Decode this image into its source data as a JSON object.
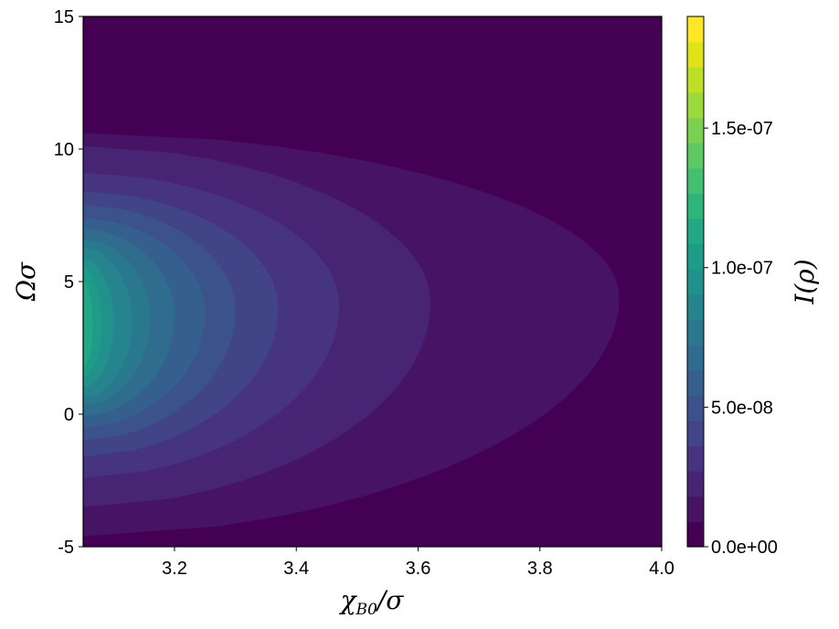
{
  "chart_data": {
    "type": "contour",
    "xlabel": "χB0/σ",
    "ylabel": "Ωσ",
    "colorbar_label": "I(ρ)",
    "xlim": [
      3.05,
      4.0
    ],
    "ylim": [
      -5,
      15
    ],
    "x_ticks": [
      3.2,
      3.4,
      3.6,
      3.8,
      4.0
    ],
    "x_tick_labels": [
      "3.2",
      "3.4",
      "3.6",
      "3.8",
      "4.0"
    ],
    "y_ticks": [
      -5,
      0,
      5,
      10,
      15
    ],
    "y_tick_labels": [
      "-5",
      "0",
      "5",
      "10",
      "15"
    ],
    "colorbar_range": [
      0,
      1.9e-07
    ],
    "colorbar_ticks": [
      0,
      5e-08,
      1e-07,
      1.5e-07
    ],
    "colorbar_tick_labels": [
      "0.0e+00",
      "5.0e-08",
      "1.0e-07",
      "1.5e-07"
    ],
    "colormap": [
      "#440154",
      "#471365",
      "#482475",
      "#463480",
      "#414487",
      "#3b528b",
      "#355f8d",
      "#2f6c8e",
      "#2a788e",
      "#25848e",
      "#21918c",
      "#1e9c89",
      "#22a884",
      "#2fb47c",
      "#44bf70",
      "#5ec962",
      "#7ad151",
      "#9bd93c",
      "#bddf26",
      "#dfe318",
      "#fde725"
    ],
    "levels": [
      {
        "xmax": 3.93,
        "ymin": -4.6,
        "ymax": 10.6,
        "y_peak": 4.4
      },
      {
        "xmax": 3.62,
        "ymin": -3.5,
        "ymax": 10.1,
        "y_peak": 4.2
      },
      {
        "xmax": 3.47,
        "ymin": -2.4,
        "ymax": 9.1,
        "y_peak": 4.1
      },
      {
        "xmax": 3.37,
        "ymin": -1.6,
        "ymax": 8.4,
        "y_peak": 4.0
      },
      {
        "xmax": 3.3,
        "ymin": -1.0,
        "ymax": 7.9,
        "y_peak": 3.9
      },
      {
        "xmax": 3.25,
        "ymin": -0.5,
        "ymax": 7.4,
        "y_peak": 3.8
      },
      {
        "xmax": 3.2,
        "ymin": -0.1,
        "ymax": 7.0,
        "y_peak": 3.7
      },
      {
        "xmax": 3.16,
        "ymin": 0.3,
        "ymax": 6.6,
        "y_peak": 3.6
      },
      {
        "xmax": 3.13,
        "ymin": 0.6,
        "ymax": 6.3,
        "y_peak": 3.5
      },
      {
        "xmax": 3.1,
        "ymin": 1.0,
        "ymax": 5.9,
        "y_peak": 3.5
      },
      {
        "xmax": 3.08,
        "ymin": 1.4,
        "ymax": 5.5,
        "y_peak": 3.4
      },
      {
        "xmax": 3.065,
        "ymin": 1.8,
        "ymax": 5.0,
        "y_peak": 3.3
      }
    ]
  }
}
